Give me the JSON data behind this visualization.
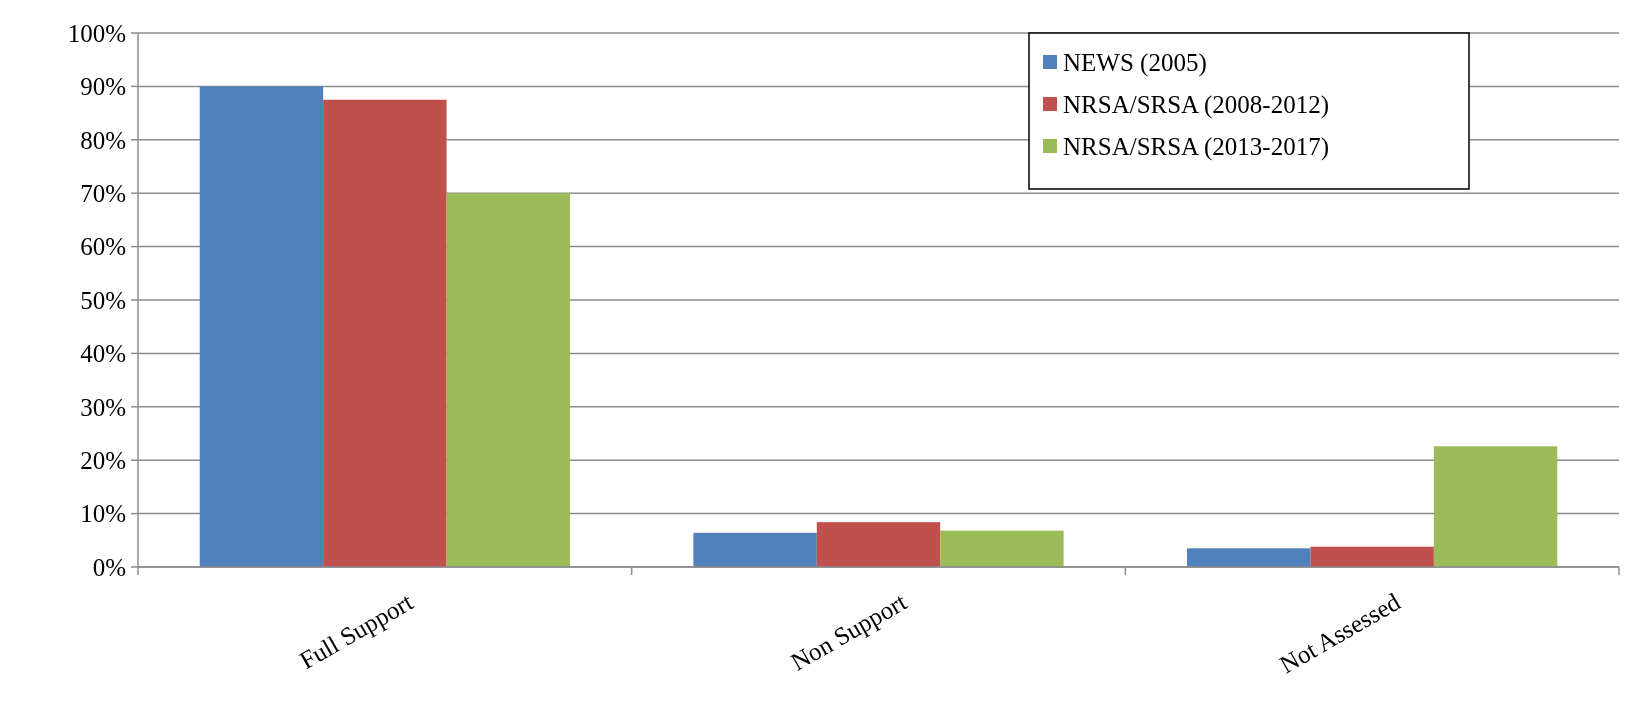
{
  "chart_data": {
    "type": "bar",
    "categories": [
      "Full Support",
      "Non Support",
      "Not Assessed"
    ],
    "series": [
      {
        "name": "NEWS (2005)",
        "color": "#4f81bd",
        "values": [
          90,
          6.4,
          3.5
        ]
      },
      {
        "name": "NRSA/SRSA (2008-2012)",
        "color": "#c0504d",
        "values": [
          87.5,
          8.4,
          3.8
        ]
      },
      {
        "name": "NRSA/SRSA (2013-2017)",
        "color": "#9bbb59",
        "values": [
          70,
          6.8,
          22.6
        ]
      }
    ],
    "ylim": [
      0,
      100
    ],
    "yticks": [
      {
        "value": 0,
        "label": "0%"
      },
      {
        "value": 10,
        "label": "10%"
      },
      {
        "value": 20,
        "label": "20%"
      },
      {
        "value": 30,
        "label": "30%"
      },
      {
        "value": 40,
        "label": "40%"
      },
      {
        "value": 50,
        "label": "50%"
      },
      {
        "value": 60,
        "label": "60%"
      },
      {
        "value": 70,
        "label": "70%"
      },
      {
        "value": 80,
        "label": "80%"
      },
      {
        "value": 90,
        "label": "90%"
      },
      {
        "value": 100,
        "label": "100%"
      }
    ],
    "grid": "y",
    "legend": "top right"
  }
}
